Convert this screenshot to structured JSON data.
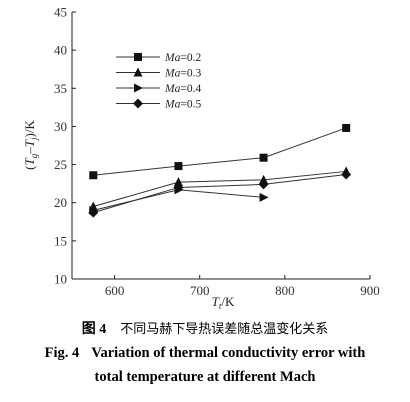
{
  "chart_data": {
    "type": "line",
    "xlabel_main": "T",
    "xlabel_sub": "t",
    "xlabel_unit": "/K",
    "ylabel_prefix": "(",
    "ylabel_t1": "T",
    "ylabel_t1_sub": "g",
    "ylabel_minus": "–",
    "ylabel_t2": "T",
    "ylabel_t2_sub": "j",
    "ylabel_suffix": ")/K",
    "xlim": [
      550,
      900
    ],
    "ylim": [
      10,
      45
    ],
    "xticks": [
      600,
      700,
      800,
      900
    ],
    "yticks": [
      10,
      15,
      20,
      25,
      30,
      35,
      40,
      45
    ],
    "legend_position": "top-left",
    "series": [
      {
        "name": "Ma=0.2",
        "name_var": "Ma",
        "name_val": "=0.2",
        "marker": "square",
        "x": [
          575,
          675,
          775,
          872
        ],
        "values": [
          23.6,
          24.8,
          25.9,
          29.8
        ]
      },
      {
        "name": "Ma=0.3",
        "name_var": "Ma",
        "name_val": "=0.3",
        "marker": "triangle-up",
        "x": [
          575,
          675,
          775,
          872
        ],
        "values": [
          19.5,
          22.7,
          23.0,
          24.1
        ]
      },
      {
        "name": "Ma=0.4",
        "name_var": "Ma",
        "name_val": "=0.4",
        "marker": "triangle-right",
        "x": [
          575,
          675,
          775
        ],
        "values": [
          19.0,
          21.7,
          20.7
        ]
      },
      {
        "name": "Ma=0.5",
        "name_var": "Ma",
        "name_val": "=0.5",
        "marker": "diamond",
        "x": [
          575,
          675,
          775,
          872
        ],
        "values": [
          18.7,
          22.0,
          22.4,
          23.7
        ]
      }
    ]
  },
  "caption": {
    "cn_number": "图 4",
    "cn_text": "不同马赫下导热误差随总温变化关系",
    "en_fig": "Fig. 4",
    "en_line1": "Variation of thermal conductivity error with",
    "en_line2": "total temperature at different Mach"
  }
}
